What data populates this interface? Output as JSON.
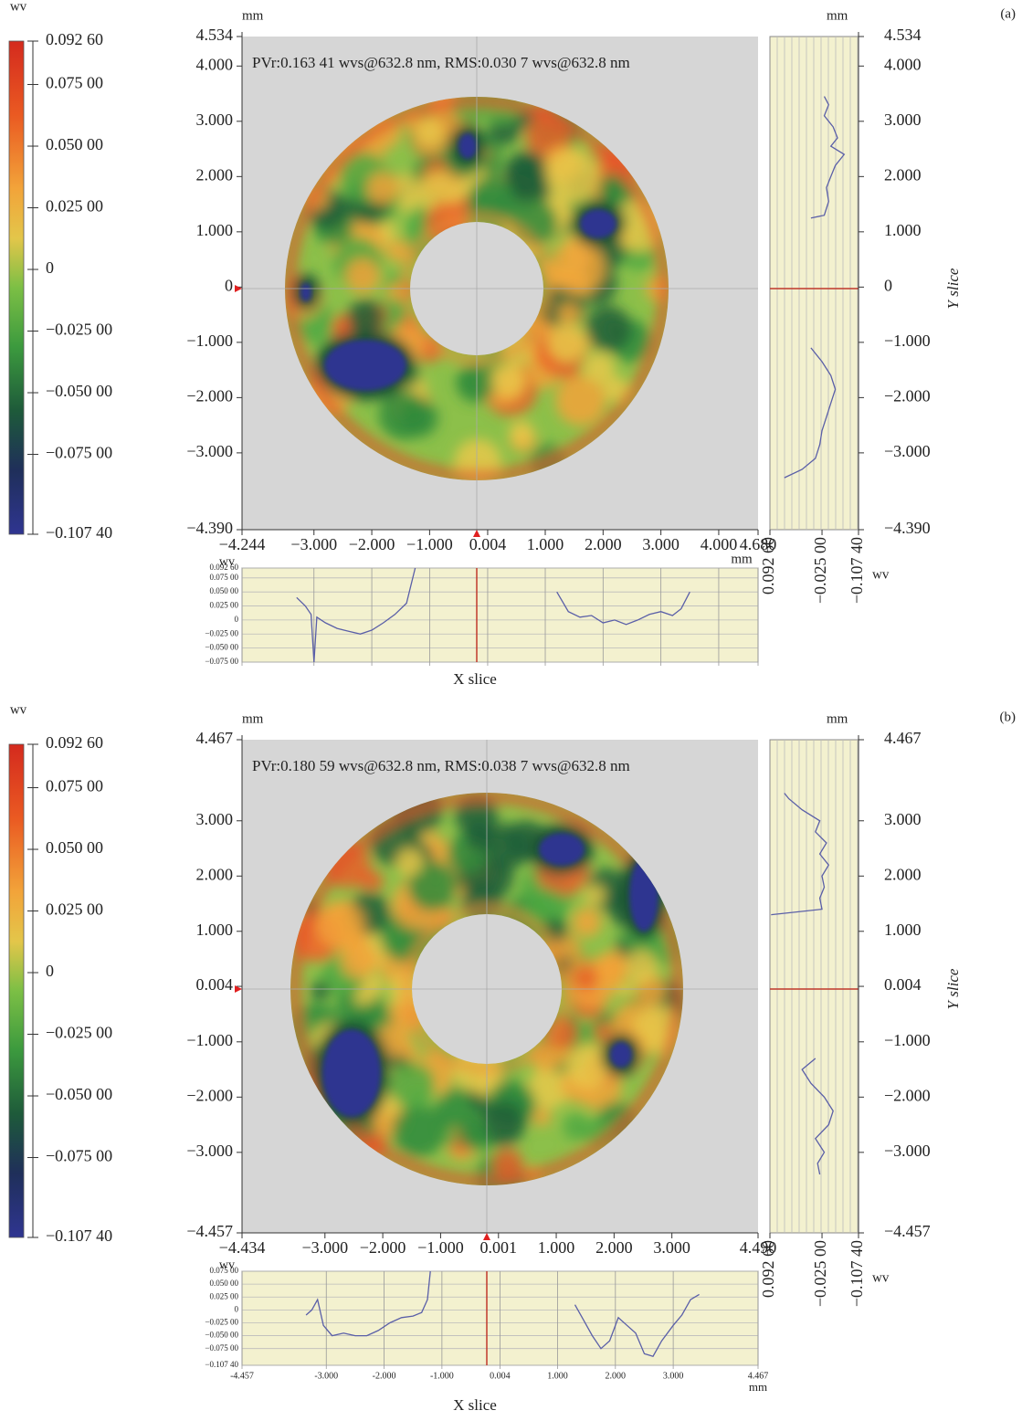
{
  "chart_data": [
    {
      "type": "interferogram",
      "panel_label": "(a)",
      "colorbar": {
        "unit": "wv",
        "lim": [
          -0.1074,
          0.0926
        ],
        "ticks": [
          {
            "value": 0.0926,
            "label": "0.092 60"
          },
          {
            "value": 0.075,
            "label": "0.075 00"
          },
          {
            "value": 0.05,
            "label": "0.050 00"
          },
          {
            "value": 0.025,
            "label": "0.025 00"
          },
          0,
          {
            "value": -0.025,
            "label": "−0.025 00"
          },
          {
            "value": -0.05,
            "label": "−0.050 00"
          },
          {
            "value": -0.075,
            "label": "−0.075 00"
          },
          {
            "value": -0.1074,
            "label": "−0.107 40"
          }
        ]
      },
      "map": {
        "unit": "mm",
        "annotation": "PVr:0.163 41 wvs@632.8 nm, RMS:0.030 7 wvs@632.8 nm",
        "xlim": [
          -4.244,
          4.68
        ],
        "ylim": [
          -4.39,
          4.534
        ],
        "xticks": [
          {
            "value": -4.244,
            "label": "−4.244"
          },
          {
            "value": -3,
            "label": "−3.000"
          },
          {
            "value": -2,
            "label": "−2.000"
          },
          {
            "value": -1,
            "label": "−1.000"
          },
          0.004,
          {
            "value": 1,
            "label": "1.000"
          },
          {
            "value": 2,
            "label": "2.000"
          },
          {
            "value": 3,
            "label": "3.000"
          },
          {
            "value": 4,
            "label": "4.000"
          },
          {
            "value": 4.68,
            "label": "4.680"
          }
        ],
        "yticks": [
          {
            "value": 4.534,
            "label": "4.534"
          },
          {
            "value": 4,
            "label": "4.000"
          },
          {
            "value": 3,
            "label": "3.000"
          },
          {
            "value": 2,
            "label": "2.000"
          },
          {
            "value": 1,
            "label": "1.000"
          },
          0,
          {
            "value": -1,
            "label": "−1.000"
          },
          {
            "value": -2,
            "label": "−2.000"
          },
          {
            "value": -3,
            "label": "−3.000"
          },
          {
            "value": -4.39,
            "label": "−4.390"
          }
        ]
      },
      "x_slice": {
        "title": "X slice",
        "unit": "wv",
        "ylim": [
          -0.075,
          0.0926
        ],
        "yticks": [
          {
            "value": 0.0926,
            "label": "0.092 60"
          },
          {
            "value": 0.075,
            "label": "0.075 00"
          },
          {
            "value": 0.05,
            "label": "0.050 00"
          },
          {
            "value": 0.025,
            "label": "0.025 00"
          },
          0,
          {
            "value": -0.025,
            "label": "−0.025 00"
          },
          {
            "value": -0.05,
            "label": "−0.050 00"
          },
          {
            "value": -0.075,
            "label": "−0.075 00"
          }
        ],
        "x_unit": "mm",
        "curves": [
          {
            "x": [
              -3.3,
              -3.15,
              -3.05,
              -3.0,
              -2.95,
              -2.8,
              -2.6,
              -2.4,
              -2.2,
              -2.0,
              -1.8,
              -1.6,
              -1.4,
              -1.25
            ],
            "values": [
              0.04,
              0.025,
              0.01,
              -0.075,
              0.005,
              -0.005,
              -0.015,
              -0.02,
              -0.025,
              -0.018,
              -0.005,
              0.01,
              0.03,
              0.0926
            ]
          },
          {
            "x": [
              1.2,
              1.4,
              1.6,
              1.8,
              2.0,
              2.2,
              2.4,
              2.6,
              2.8,
              3.0,
              3.2,
              3.35,
              3.5
            ],
            "values": [
              0.05,
              0.015,
              0.005,
              0.008,
              -0.005,
              0.0,
              -0.008,
              0.0,
              0.01,
              0.015,
              0.008,
              0.02,
              0.05
            ]
          }
        ]
      },
      "y_slice": {
        "title": "Y slice",
        "unit": "wv",
        "xlim": [
          0.0926,
          -0.1074
        ],
        "xticks": [
          {
            "value": 0.0926,
            "label": "0.092 60"
          },
          {
            "value": -0.025,
            "label": "−0.025 00"
          },
          {
            "value": -0.1074,
            "label": "−0.107 40"
          }
        ],
        "curves": [
          {
            "y": [
              3.45,
              3.3,
              3.1,
              2.9,
              2.7,
              2.55,
              2.4,
              2.2,
              2.0,
              1.8,
              1.55,
              1.3,
              1.25
            ],
            "values": [
              -0.03,
              -0.04,
              -0.03,
              -0.05,
              -0.06,
              -0.045,
              -0.075,
              -0.055,
              -0.045,
              -0.035,
              -0.04,
              -0.03,
              0.0
            ]
          },
          {
            "y": [
              -1.1,
              -1.35,
              -1.6,
              -1.85,
              -2.1,
              -2.35,
              -2.6,
              -2.85,
              -3.1,
              -3.3,
              -3.45
            ],
            "values": [
              0.0,
              -0.025,
              -0.045,
              -0.055,
              -0.045,
              -0.035,
              -0.025,
              -0.02,
              -0.01,
              0.02,
              0.06
            ]
          }
        ]
      }
    },
    {
      "type": "interferogram",
      "panel_label": "(b)",
      "colorbar": {
        "unit": "wv",
        "lim": [
          -0.1074,
          0.0926
        ],
        "ticks": [
          {
            "value": 0.0926,
            "label": "0.092 60"
          },
          {
            "value": 0.075,
            "label": "0.075 00"
          },
          {
            "value": 0.05,
            "label": "0.050 00"
          },
          {
            "value": 0.025,
            "label": "0.025 00"
          },
          0,
          {
            "value": -0.025,
            "label": "−0.025 00"
          },
          {
            "value": -0.05,
            "label": "−0.050 00"
          },
          {
            "value": -0.075,
            "label": "−0.075 00"
          },
          {
            "value": -0.1074,
            "label": "−0.107 40"
          }
        ]
      },
      "map": {
        "unit": "mm",
        "annotation": "PVr:0.180 59 wvs@632.8 nm, RMS:0.038 7 wvs@632.8 nm",
        "xlim": [
          -4.434,
          4.49
        ],
        "ylim": [
          -4.457,
          4.467
        ],
        "xticks": [
          {
            "value": -4.434,
            "label": "−4.434"
          },
          {
            "value": -3,
            "label": "−3.000"
          },
          {
            "value": -2,
            "label": "−2.000"
          },
          {
            "value": -1,
            "label": "−1.000"
          },
          0.001,
          {
            "value": 1,
            "label": "1.000"
          },
          {
            "value": 2,
            "label": "2.000"
          },
          {
            "value": 3,
            "label": "3.000"
          },
          {
            "value": 4.49,
            "label": "4.490"
          }
        ],
        "yticks": [
          {
            "value": 4.467,
            "label": "4.467"
          },
          {
            "value": 3,
            "label": "3.000"
          },
          {
            "value": 2,
            "label": "2.000"
          },
          {
            "value": 1,
            "label": "1.000"
          },
          0.004,
          {
            "value": -1,
            "label": "−1.000"
          },
          {
            "value": -2,
            "label": "−2.000"
          },
          {
            "value": -3,
            "label": "−3.000"
          },
          {
            "value": -4.457,
            "label": "−4.457"
          }
        ]
      },
      "x_slice": {
        "title": "X slice",
        "unit": "wv",
        "ylim": [
          -0.1074,
          0.075
        ],
        "yticks": [
          {
            "value": 0.075,
            "label": "0.075 00"
          },
          {
            "value": 0.05,
            "label": "0.050 00"
          },
          {
            "value": 0.025,
            "label": "0.025 00"
          },
          0,
          {
            "value": -0.025,
            "label": "−0.025 00"
          },
          {
            "value": -0.05,
            "label": "−0.050 00"
          },
          {
            "value": -0.075,
            "label": "−0.075 00"
          },
          {
            "value": -0.1074,
            "label": "−0.107 40"
          }
        ],
        "x_unit": "mm",
        "xlim": [
          -4.457,
          4.467
        ],
        "xticks": [
          {
            "value": -4.457,
            "label": "-4.457"
          },
          {
            "value": -3,
            "label": "-3.000"
          },
          {
            "value": -2,
            "label": "-2.000"
          },
          {
            "value": -1,
            "label": "-1.000"
          },
          0.004,
          {
            "value": 1,
            "label": "1.000"
          },
          {
            "value": 2,
            "label": "2.000"
          },
          {
            "value": 3,
            "label": "3.000"
          },
          {
            "value": 4.467,
            "label": "4.467"
          }
        ],
        "curves": [
          {
            "x": [
              -3.35,
              -3.25,
              -3.15,
              -3.05,
              -2.9,
              -2.7,
              -2.5,
              -2.3,
              -2.1,
              -1.9,
              -1.7,
              -1.5,
              -1.35,
              -1.25,
              -1.2
            ],
            "values": [
              -0.01,
              0.0,
              0.02,
              -0.03,
              -0.05,
              -0.045,
              -0.05,
              -0.05,
              -0.04,
              -0.025,
              -0.015,
              -0.012,
              -0.005,
              0.02,
              0.075
            ]
          },
          {
            "x": [
              1.3,
              1.45,
              1.6,
              1.75,
              1.9,
              2.05,
              2.2,
              2.35,
              2.5,
              2.65,
              2.8,
              3.0,
              3.15,
              3.3,
              3.45
            ],
            "values": [
              0.01,
              -0.02,
              -0.05,
              -0.075,
              -0.06,
              -0.015,
              -0.03,
              -0.045,
              -0.085,
              -0.09,
              -0.06,
              -0.03,
              -0.01,
              0.02,
              0.03
            ]
          }
        ]
      },
      "y_slice": {
        "title": "Y slice",
        "unit": "wv",
        "xlim": [
          0.0926,
          -0.1074
        ],
        "xticks": [
          {
            "value": 0.0926,
            "label": "0.092 60"
          },
          {
            "value": -0.025,
            "label": "−0.025 00"
          },
          {
            "value": -0.1074,
            "label": "−0.107 40"
          }
        ],
        "curves": [
          {
            "y": [
              3.5,
              3.4,
              3.2,
              3.0,
              2.8,
              2.6,
              2.4,
              2.2,
              2.0,
              1.8,
              1.6,
              1.4,
              1.3
            ],
            "values": [
              0.06,
              0.05,
              0.02,
              -0.02,
              -0.01,
              -0.035,
              -0.02,
              -0.04,
              -0.025,
              -0.03,
              -0.02,
              -0.025,
              0.09
            ]
          },
          {
            "y": [
              -1.3,
              -1.5,
              -1.75,
              -2.0,
              -2.25,
              -2.5,
              -2.75,
              -3.0,
              -3.2,
              -3.4
            ],
            "values": [
              -0.01,
              0.02,
              0.0,
              -0.03,
              -0.05,
              -0.04,
              -0.01,
              -0.03,
              -0.015,
              -0.02
            ]
          }
        ]
      }
    }
  ]
}
